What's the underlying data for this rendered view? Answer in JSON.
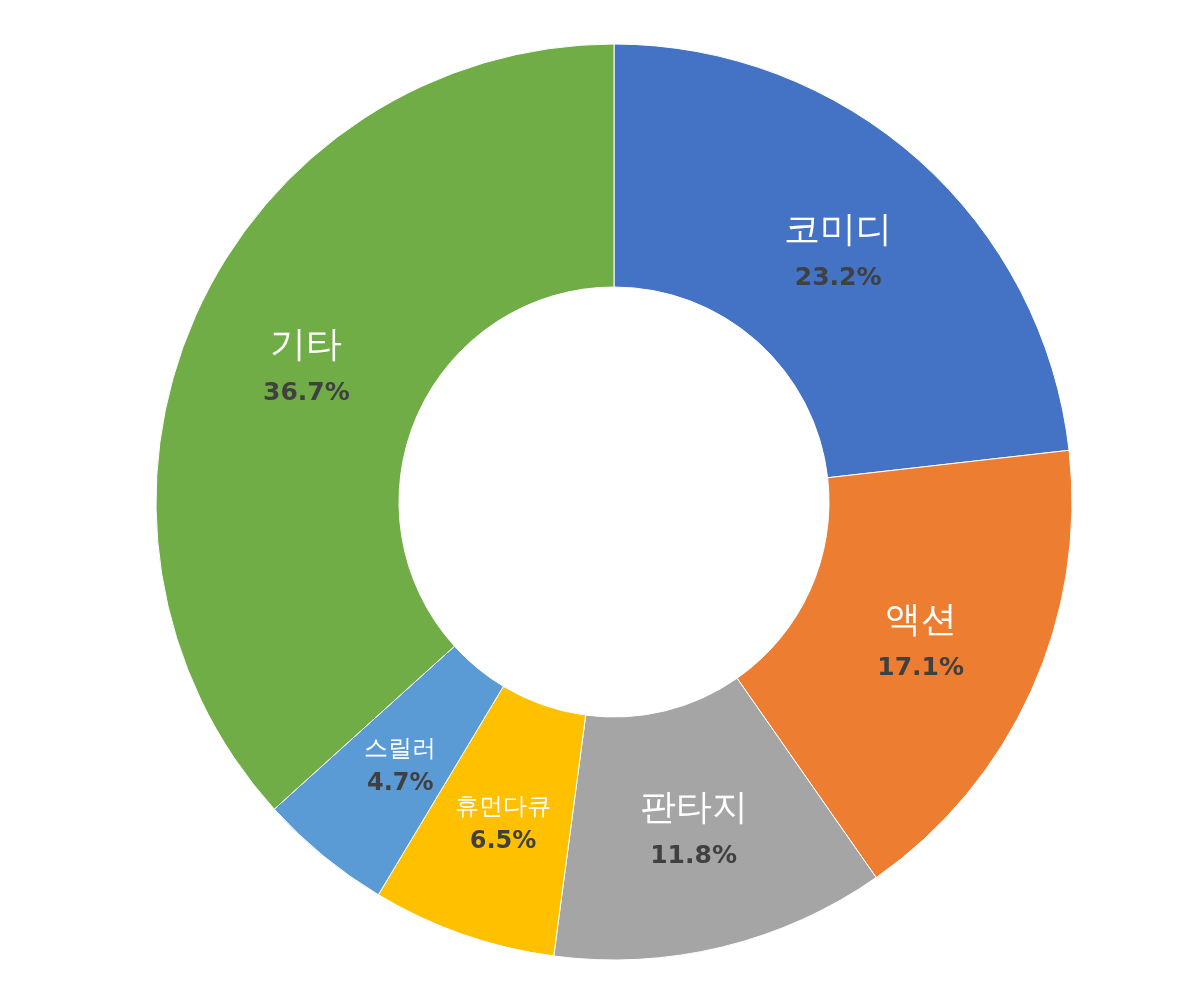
{
  "chart_data": {
    "type": "donut",
    "categories": [
      "코미디",
      "액션",
      "판타지",
      "휴먼다큐",
      "스릴러",
      "기타"
    ],
    "values": [
      23.2,
      17.1,
      11.8,
      6.5,
      4.7,
      36.7
    ],
    "colors": [
      "#4472c4",
      "#ed7d31",
      "#a5a5a5",
      "#ffc000",
      "#5b9bd5",
      "#70ad47"
    ],
    "value_labels": [
      "23.2%",
      "17.1%",
      "11.8%",
      "6.5%",
      "4.7%",
      "36.7%"
    ],
    "legend": false
  }
}
